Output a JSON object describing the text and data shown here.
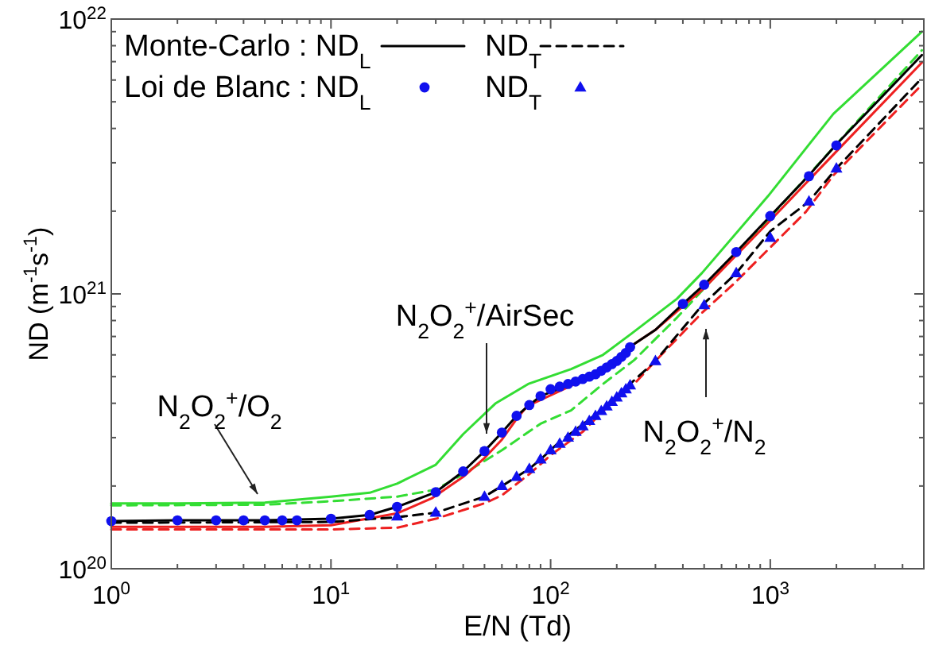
{
  "chart_data": {
    "type": "line",
    "xlabel": "E/N (Td)",
    "ylabel": "ND  (m$^{-1}$s$^{-1}$)",
    "log": "xy",
    "xlim": [
      1,
      5000
    ],
    "ylim": [
      1e+20,
      1e+22
    ],
    "xticks": [
      {
        "value": 1,
        "label": "10$^{0}$"
      },
      {
        "value": 2,
        "label": null
      },
      {
        "value": 3,
        "label": null
      },
      {
        "value": 4,
        "label": null
      },
      {
        "value": 5,
        "label": null
      },
      {
        "value": 6,
        "label": null
      },
      {
        "value": 7,
        "label": null
      },
      {
        "value": 8,
        "label": null
      },
      {
        "value": 9,
        "label": null
      },
      {
        "value": 10,
        "label": "10$^{1}$"
      },
      {
        "value": 20,
        "label": null
      },
      {
        "value": 30,
        "label": null
      },
      {
        "value": 40,
        "label": null
      },
      {
        "value": 50,
        "label": null
      },
      {
        "value": 60,
        "label": null
      },
      {
        "value": 70,
        "label": null
      },
      {
        "value": 80,
        "label": null
      },
      {
        "value": 90,
        "label": null
      },
      {
        "value": 100,
        "label": "10$^{2}$"
      },
      {
        "value": 200,
        "label": null
      },
      {
        "value": 300,
        "label": null
      },
      {
        "value": 400,
        "label": null
      },
      {
        "value": 500,
        "label": null
      },
      {
        "value": 600,
        "label": null
      },
      {
        "value": 700,
        "label": null
      },
      {
        "value": 800,
        "label": null
      },
      {
        "value": 900,
        "label": null
      },
      {
        "value": 1000,
        "label": "10$^{3}$"
      },
      {
        "value": 2000,
        "label": null
      },
      {
        "value": 3000,
        "label": null
      },
      {
        "value": 4000,
        "label": null
      },
      {
        "value": 5000,
        "label": null
      }
    ],
    "yticks": [
      {
        "value": 1e+20,
        "label": "10$^{20}$"
      },
      {
        "value": 2e+20,
        "label": null
      },
      {
        "value": 3e+20,
        "label": null
      },
      {
        "value": 4e+20,
        "label": null
      },
      {
        "value": 5e+20,
        "label": null
      },
      {
        "value": 6e+20,
        "label": null
      },
      {
        "value": 7e+20,
        "label": null
      },
      {
        "value": 8e+20,
        "label": null
      },
      {
        "value": 9e+20,
        "label": null
      },
      {
        "value": 1e+21,
        "label": "10$^{21}$"
      },
      {
        "value": 2e+21,
        "label": null
      },
      {
        "value": 3e+21,
        "label": null
      },
      {
        "value": 4e+21,
        "label": null
      },
      {
        "value": 5e+21,
        "label": null
      },
      {
        "value": 6e+21,
        "label": null
      },
      {
        "value": 7e+21,
        "label": null
      },
      {
        "value": 8e+21,
        "label": null
      },
      {
        "value": 9e+21,
        "label": null
      },
      {
        "value": 1e+22,
        "label": "10$^{22}$"
      }
    ],
    "grid": false,
    "legend": "top left",
    "series": [
      {
        "color": "#33dd33",
        "line_style": "solid",
        "x": [
          1,
          2,
          5,
          10,
          15,
          20,
          30,
          40,
          56,
          79,
          124,
          173,
          235,
          376,
          488,
          977,
          1937,
          4900
        ],
        "values": [
          1.73e+20,
          1.73e+20,
          1.74e+20,
          1.83e+20,
          1.89e+20,
          2.04e+20,
          2.39e+20,
          3.09e+20,
          3.99e+20,
          4.7e+20,
          5.33e+20,
          6e+20,
          7.2e+20,
          9.6e+20,
          1.19e+21,
          2.27e+21,
          4.52e+21,
          9e+21
        ]
      },
      {
        "color": "#33dd33",
        "line_style": "dashed",
        "x": [
          1,
          5,
          10,
          20,
          30,
          40,
          60,
          90,
          124,
          173,
          240,
          376,
          1000,
          2477,
          4900
        ],
        "values": [
          1.7e+20,
          1.71e+20,
          1.76e+20,
          1.83e+20,
          1.94e+20,
          2.21e+20,
          2.7e+20,
          3.37e+20,
          3.77e+20,
          4.7e+20,
          5.74e+20,
          8.2e+20,
          1.9e+21,
          4.23e+21,
          7.7e+21
        ]
      },
      {
        "color": "#ee2020",
        "line_style": "solid",
        "x": [
          1,
          5,
          10,
          20,
          29,
          40,
          50,
          60,
          69,
          78,
          125,
          175,
          235,
          300,
          500,
          1000,
          2000,
          4900
        ],
        "values": [
          1.42e+20,
          1.42e+20,
          1.44e+20,
          1.59e+20,
          1.81e+20,
          2.16e+20,
          2.53e+20,
          2.95e+20,
          3.45e+20,
          3.9e+20,
          4.65e+20,
          5.25e+20,
          6.5e+20,
          7.4e+20,
          1.05e+21,
          1.85e+21,
          3.3e+21,
          6.95e+21
        ]
      },
      {
        "color": "#ee2020",
        "line_style": "dashed",
        "x": [
          1,
          10,
          20,
          30,
          50,
          60,
          80,
          100,
          140,
          175,
          240,
          300,
          490,
          684,
          1453,
          1937,
          4900
        ],
        "values": [
          1.39e+20,
          1.39e+20,
          1.41e+20,
          1.52e+20,
          1.73e+20,
          1.85e+20,
          2.21e+20,
          2.59e+20,
          3.15e+20,
          3.77e+20,
          4.7e+20,
          5.7e+20,
          8.55e+20,
          1.09e+21,
          1.99e+21,
          2.7e+21,
          5.77e+21
        ]
      },
      {
        "name": "Monte-Carlo : ND$_{L}$",
        "color": "#000000",
        "line_style": "solid",
        "x": [
          1,
          2,
          5,
          10,
          15,
          20,
          30,
          40,
          50,
          60,
          70,
          80,
          90,
          125,
          175,
          235,
          300,
          400,
          500,
          700,
          1000,
          1500,
          2000,
          4900
        ],
        "values": [
          1.49e+20,
          1.5e+20,
          1.5e+20,
          1.52e+20,
          1.57e+20,
          1.68e+20,
          1.9e+20,
          2.26e+20,
          2.68e+20,
          3.13e+20,
          3.6e+20,
          3.94e+20,
          4.25e+20,
          4.7e+20,
          5.3e+20,
          6.5e+20,
          7.4e+20,
          9.2e+20,
          1.08e+21,
          1.42e+21,
          1.92e+21,
          2.7e+21,
          3.5e+21,
          7.4e+21
        ]
      },
      {
        "name": "ND$_{T}$",
        "color": "#000000",
        "line_style": "dashed",
        "x": [
          1,
          10,
          20,
          30,
          50,
          60,
          70,
          80,
          90,
          110,
          140,
          175,
          240,
          300,
          490,
          700,
          1000,
          1500,
          2000,
          4900
        ],
        "values": [
          1.47e+20,
          1.48e+20,
          1.54e+20,
          1.6e+20,
          1.83e+20,
          2e+20,
          2.16e+20,
          2.31e+20,
          2.5e+20,
          2.9e+20,
          3.35e+20,
          3.85e+20,
          4.85e+20,
          5.7e+20,
          9.1e+20,
          1.19e+21,
          1.69e+21,
          2.17e+21,
          2.86e+21,
          6.1e+21
        ]
      },
      {
        "name": "Loi de Blanc : ND$_{L}$",
        "type": "scatter",
        "marker": "circle",
        "color": "#1010ee",
        "x": [
          1,
          2,
          3,
          4,
          5,
          6,
          7,
          10,
          15,
          20,
          30,
          40,
          50,
          60,
          70,
          80,
          90,
          100,
          110,
          120,
          130,
          140,
          150,
          160,
          170,
          180,
          190,
          200,
          210,
          220,
          230,
          400,
          500,
          700,
          1000,
          1500,
          2000
        ],
        "values": [
          1.49e+20,
          1.5e+20,
          1.5e+20,
          1.5e+20,
          1.5e+20,
          1.5e+20,
          1.5e+20,
          1.52e+20,
          1.57e+20,
          1.68e+20,
          1.9e+20,
          2.26e+20,
          2.68e+20,
          3.13e+20,
          3.6e+20,
          3.94e+20,
          4.25e+20,
          4.5e+20,
          4.6e+20,
          4.7e+20,
          4.8e+20,
          4.9e+20,
          5e+20,
          5.1e+20,
          5.25e+20,
          5.4e+20,
          5.55e+20,
          5.7e+20,
          5.9e+20,
          6.1e+20,
          6.4e+20,
          9.2e+20,
          1.08e+21,
          1.42e+21,
          1.92e+21,
          2.68e+21,
          3.47e+21
        ]
      },
      {
        "name": "ND$_{T}$",
        "type": "scatter",
        "marker": "triangle",
        "color": "#1010ee",
        "x": [
          20,
          30,
          50,
          60,
          70,
          80,
          90,
          100,
          110,
          120,
          130,
          140,
          150,
          160,
          170,
          180,
          190,
          200,
          210,
          220,
          230,
          300,
          500,
          700,
          1000,
          1500,
          2000
        ],
        "values": [
          1.55e+20,
          1.6e+20,
          1.83e+20,
          2e+20,
          2.16e+20,
          2.31e+20,
          2.5e+20,
          2.7e+20,
          2.85e+20,
          3e+20,
          3.15e+20,
          3.3e+20,
          3.45e+20,
          3.6e+20,
          3.75e+20,
          3.9e+20,
          4.05e+20,
          4.2e+20,
          4.35e+20,
          4.5e+20,
          4.65e+20,
          5.7e+20,
          9.1e+20,
          1.19e+21,
          1.6e+21,
          2.17e+21,
          2.86e+21
        ]
      }
    ],
    "annotations": [
      "N$_{2}$O$_{2}$$^{+}$/O$_{2}$",
      "N$_{2}$O$_{2}$$^{+}$/AirSec",
      "N$_{2}$O$_{2}$$^{+}$/N$_{2}$"
    ]
  }
}
